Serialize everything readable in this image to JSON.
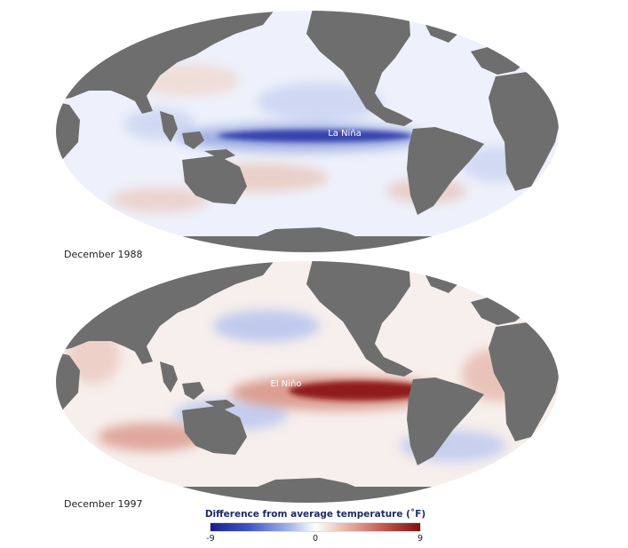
{
  "maps": [
    {
      "date": "December 1988",
      "label": "La Niña",
      "anomaly": "cool",
      "colors": {
        "band": "#2a37a8",
        "band_soft": "#8ea0dd",
        "accent": "#e9c6bb"
      }
    },
    {
      "date": "December 1997",
      "label": "El Niño",
      "anomaly": "warm",
      "colors": {
        "band": "#8b1414",
        "band_soft": "#d58a7c",
        "accent": "#b9c6ee"
      }
    }
  ],
  "legend": {
    "title": "Difference from average temperature (˚F)",
    "min": "-9",
    "mid": "0",
    "max": "9",
    "colors": {
      "cold": "#1b1e8c",
      "neutral": "#ffffff",
      "hot": "#7e1010"
    }
  },
  "land_color": "#6e6e6e"
}
